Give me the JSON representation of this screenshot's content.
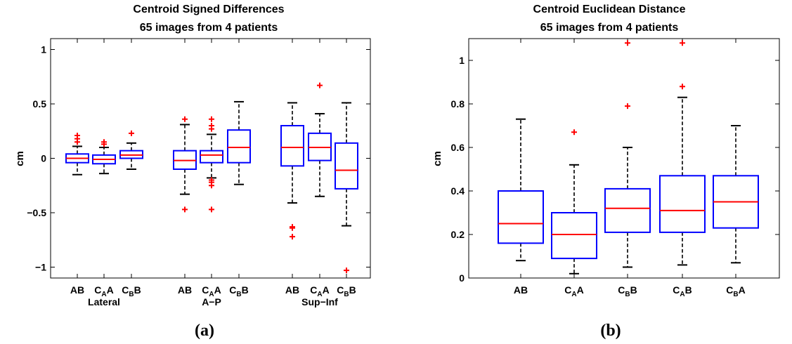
{
  "colors": {
    "box": "#0000ff",
    "median": "#ff0000",
    "outlier": "#ff0000",
    "whisker": "#000000"
  },
  "chart_data": [
    {
      "type": "box",
      "caption": "(a)",
      "title": "Centroid Signed Differences",
      "subtitle": "65 images from 4 patients",
      "xlabel": "",
      "ylabel": "cm",
      "ylim": [
        -1.1,
        1.1
      ],
      "yticks": [
        -1,
        -0.5,
        0,
        0.5,
        1
      ],
      "ytick_labels": [
        "−1",
        "−0.5",
        "0",
        "0.5",
        "1"
      ],
      "groups": [
        "Lateral",
        "A−P",
        "Sup−Inf"
      ],
      "boxes": [
        {
          "group": "Lateral",
          "label": "AB",
          "min": -0.15,
          "q1": -0.04,
          "median": 0.0,
          "q3": 0.04,
          "max": 0.11,
          "outliers": [
            0.15,
            0.18,
            0.21
          ]
        },
        {
          "group": "Lateral",
          "label": "CAA",
          "min": -0.14,
          "q1": -0.05,
          "median": -0.01,
          "q3": 0.03,
          "max": 0.1,
          "outliers": [
            0.13,
            0.15
          ]
        },
        {
          "group": "Lateral",
          "label": "CBB",
          "min": -0.1,
          "q1": 0.0,
          "median": 0.03,
          "q3": 0.07,
          "max": 0.14,
          "outliers": [
            0.23
          ]
        },
        {
          "group": "A−P",
          "label": "AB",
          "min": -0.33,
          "q1": -0.1,
          "median": -0.02,
          "q3": 0.07,
          "max": 0.31,
          "outliers": [
            0.36,
            -0.47
          ]
        },
        {
          "group": "A−P",
          "label": "CAA",
          "min": -0.18,
          "q1": -0.04,
          "median": 0.03,
          "q3": 0.07,
          "max": 0.22,
          "outliers": [
            0.36,
            0.3,
            0.27,
            -0.2,
            -0.22,
            -0.25,
            -0.47
          ]
        },
        {
          "group": "A−P",
          "label": "CBB",
          "min": -0.24,
          "q1": -0.04,
          "median": 0.1,
          "q3": 0.26,
          "max": 0.52,
          "outliers": []
        },
        {
          "group": "Sup−Inf",
          "label": "AB",
          "min": -0.41,
          "q1": -0.07,
          "median": 0.1,
          "q3": 0.3,
          "max": 0.51,
          "outliers": [
            -0.63,
            -0.64,
            -0.72
          ]
        },
        {
          "group": "Sup−Inf",
          "label": "CAA",
          "min": -0.35,
          "q1": -0.02,
          "median": 0.1,
          "q3": 0.23,
          "max": 0.41,
          "outliers": [
            0.67
          ]
        },
        {
          "group": "Sup−Inf",
          "label": "CBB",
          "min": -0.62,
          "q1": -0.28,
          "median": -0.11,
          "q3": 0.14,
          "max": 0.51,
          "outliers": [
            -1.03
          ]
        }
      ]
    },
    {
      "type": "box",
      "caption": "(b)",
      "title": "Centroid Euclidean Distance",
      "subtitle": "65 images from 4 patients",
      "xlabel": "",
      "ylabel": "cm",
      "ylim": [
        0,
        1.1
      ],
      "yticks": [
        0,
        0.2,
        0.4,
        0.6,
        0.8,
        1
      ],
      "ytick_labels": [
        "0",
        "0.2",
        "0.4",
        "0.6",
        "0.8",
        "1"
      ],
      "boxes": [
        {
          "label": "AB",
          "min": 0.08,
          "q1": 0.16,
          "median": 0.25,
          "q3": 0.4,
          "max": 0.73,
          "outliers": []
        },
        {
          "label": "CAA",
          "min": 0.02,
          "q1": 0.09,
          "median": 0.2,
          "q3": 0.3,
          "max": 0.52,
          "outliers": [
            0.67
          ]
        },
        {
          "label": "CBB",
          "min": 0.05,
          "q1": 0.21,
          "median": 0.32,
          "q3": 0.41,
          "max": 0.6,
          "outliers": [
            0.79,
            1.08
          ]
        },
        {
          "label": "CAB",
          "min": 0.06,
          "q1": 0.21,
          "median": 0.31,
          "q3": 0.47,
          "max": 0.83,
          "outliers": [
            0.88,
            1.08
          ]
        },
        {
          "label": "CBA",
          "min": 0.07,
          "q1": 0.23,
          "median": 0.35,
          "q3": 0.47,
          "max": 0.7,
          "outliers": []
        }
      ]
    }
  ]
}
